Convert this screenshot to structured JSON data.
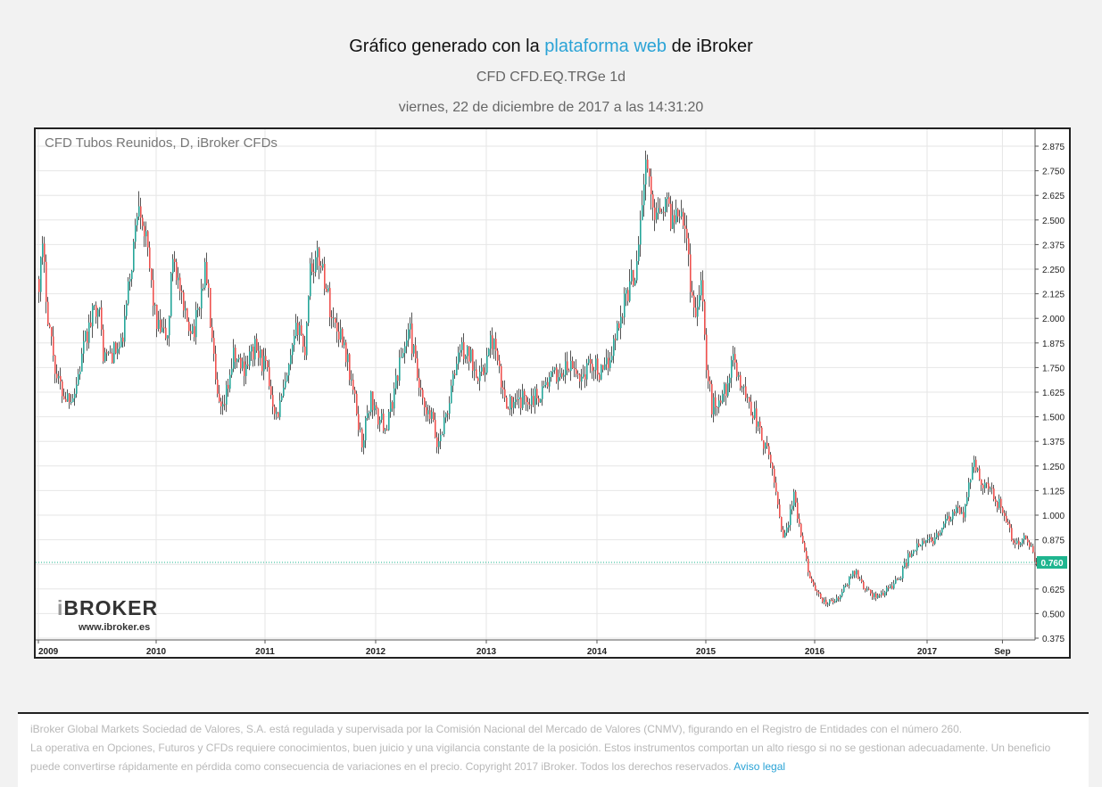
{
  "header": {
    "title_pre": "Gráfico generado con la ",
    "title_link": "plataforma web",
    "title_post": " de iBroker",
    "subtitle": "CFD CFD.EQ.TRGe 1d",
    "date": "viernes, 22 de diciembre de 2017 a las 14:31:20"
  },
  "logo": {
    "brand_i": "i",
    "brand_rest": "BROKER",
    "url": "www.ibroker.es"
  },
  "colors": {
    "up": "#26a69a",
    "down": "#ef5350",
    "wick": "#555555",
    "last_price": "#1fb58f",
    "link": "#2aa3d6"
  },
  "chart_data": {
    "type": "candlestick",
    "title": "CFD Tubos Reunidos, D, iBroker CFDs",
    "x_ticks": [
      "2009",
      "2010",
      "2011",
      "2012",
      "2013",
      "2014",
      "2015",
      "2016",
      "2017",
      "Sep"
    ],
    "y_ticks": [
      "2.875",
      "2.750",
      "2.625",
      "2.500",
      "2.375",
      "2.250",
      "2.125",
      "2.000",
      "1.875",
      "1.750",
      "1.625",
      "1.500",
      "1.375",
      "1.250",
      "1.125",
      "1.000",
      "0.875",
      "0.750",
      "0.625",
      "0.500",
      "0.375"
    ],
    "ylim": [
      0.375,
      2.875
    ],
    "last_price": "0.760",
    "grid": true,
    "path": [
      [
        2009.0,
        2.2
      ],
      [
        2009.03,
        2.34
      ],
      [
        2009.08,
        2.0
      ],
      [
        2009.15,
        1.7
      ],
      [
        2009.22,
        1.6
      ],
      [
        2009.3,
        1.62
      ],
      [
        2009.4,
        1.9
      ],
      [
        2009.5,
        2.1
      ],
      [
        2009.55,
        1.8
      ],
      [
        2009.7,
        1.85
      ],
      [
        2009.8,
        2.35
      ],
      [
        2009.85,
        2.64
      ],
      [
        2009.95,
        2.2
      ],
      [
        2010.0,
        1.95
      ],
      [
        2010.1,
        1.9
      ],
      [
        2010.15,
        2.35
      ],
      [
        2010.25,
        2.0
      ],
      [
        2010.35,
        1.95
      ],
      [
        2010.45,
        2.27
      ],
      [
        2010.55,
        1.6
      ],
      [
        2010.6,
        1.5
      ],
      [
        2010.7,
        1.8
      ],
      [
        2010.8,
        1.75
      ],
      [
        2010.9,
        1.85
      ],
      [
        2011.0,
        1.75
      ],
      [
        2011.1,
        1.5
      ],
      [
        2011.2,
        1.7
      ],
      [
        2011.3,
        2.0
      ],
      [
        2011.35,
        1.8
      ],
      [
        2011.4,
        2.27
      ],
      [
        2011.5,
        2.3
      ],
      [
        2011.6,
        2.0
      ],
      [
        2011.7,
        1.9
      ],
      [
        2011.8,
        1.6
      ],
      [
        2011.87,
        1.36
      ],
      [
        2011.95,
        1.6
      ],
      [
        2012.0,
        1.5
      ],
      [
        2012.1,
        1.45
      ],
      [
        2012.2,
        1.75
      ],
      [
        2012.3,
        1.95
      ],
      [
        2012.4,
        1.6
      ],
      [
        2012.45,
        1.5
      ],
      [
        2012.5,
        1.5
      ],
      [
        2012.55,
        1.35
      ],
      [
        2012.65,
        1.55
      ],
      [
        2012.75,
        1.85
      ],
      [
        2012.85,
        1.8
      ],
      [
        2012.95,
        1.7
      ],
      [
        2013.05,
        1.9
      ],
      [
        2013.15,
        1.6
      ],
      [
        2013.25,
        1.55
      ],
      [
        2013.35,
        1.6
      ],
      [
        2013.45,
        1.6
      ],
      [
        2013.55,
        1.68
      ],
      [
        2013.65,
        1.72
      ],
      [
        2013.75,
        1.75
      ],
      [
        2013.85,
        1.7
      ],
      [
        2013.95,
        1.78
      ],
      [
        2014.05,
        1.7
      ],
      [
        2014.15,
        1.88
      ],
      [
        2014.25,
        2.1
      ],
      [
        2014.35,
        2.25
      ],
      [
        2014.4,
        2.55
      ],
      [
        2014.45,
        2.8
      ],
      [
        2014.5,
        2.55
      ],
      [
        2014.6,
        2.6
      ],
      [
        2014.7,
        2.5
      ],
      [
        2014.75,
        2.6
      ],
      [
        2014.8,
        2.5
      ],
      [
        2014.85,
        2.2
      ],
      [
        2014.9,
        2.0
      ],
      [
        2014.95,
        2.25
      ],
      [
        2015.0,
        1.75
      ],
      [
        2015.05,
        1.55
      ],
      [
        2015.15,
        1.6
      ],
      [
        2015.25,
        1.78
      ],
      [
        2015.35,
        1.62
      ],
      [
        2015.45,
        1.5
      ],
      [
        2015.5,
        1.4
      ],
      [
        2015.6,
        1.25
      ],
      [
        2015.65,
        1.08
      ],
      [
        2015.7,
        0.9
      ],
      [
        2015.75,
        0.95
      ],
      [
        2015.8,
        1.1
      ],
      [
        2015.9,
        0.8
      ],
      [
        2016.0,
        0.6
      ],
      [
        2016.1,
        0.55
      ],
      [
        2016.2,
        0.57
      ],
      [
        2016.25,
        0.62
      ],
      [
        2016.35,
        0.72
      ],
      [
        2016.45,
        0.62
      ],
      [
        2016.55,
        0.58
      ],
      [
        2016.65,
        0.63
      ],
      [
        2016.75,
        0.68
      ],
      [
        2016.85,
        0.82
      ],
      [
        2016.95,
        0.85
      ],
      [
        2017.05,
        0.88
      ],
      [
        2017.15,
        0.95
      ],
      [
        2017.25,
        1.02
      ],
      [
        2017.32,
        1.0
      ],
      [
        2017.37,
        1.15
      ],
      [
        2017.4,
        1.28
      ],
      [
        2017.45,
        1.2
      ],
      [
        2017.52,
        1.15
      ],
      [
        2017.6,
        1.08
      ],
      [
        2017.65,
        1.05
      ],
      [
        2017.7,
        0.95
      ],
      [
        2017.78,
        0.85
      ],
      [
        2017.85,
        0.88
      ],
      [
        2017.92,
        0.82
      ],
      [
        2017.97,
        0.76
      ]
    ]
  },
  "footer": {
    "line1": "iBroker Global Markets Sociedad de Valores, S.A. está regulada y supervisada por la Comisión Nacional del Mercado de Valores (CNMV), figurando en el Registro de Entidades con el número 260.",
    "line2": "La operativa en Opciones, Futuros y CFDs requiere conocimientos, buen juicio y una vigilancia constante de la posición. Estos instrumentos comportan un alto riesgo si no se gestionan adecuadamente. Un beneficio puede convertirse rápidamente en pérdida como consecuencia de variaciones en el precio. Copyright 2017 iBroker. Todos los derechos reservados.",
    "legal_link": "Aviso legal"
  }
}
